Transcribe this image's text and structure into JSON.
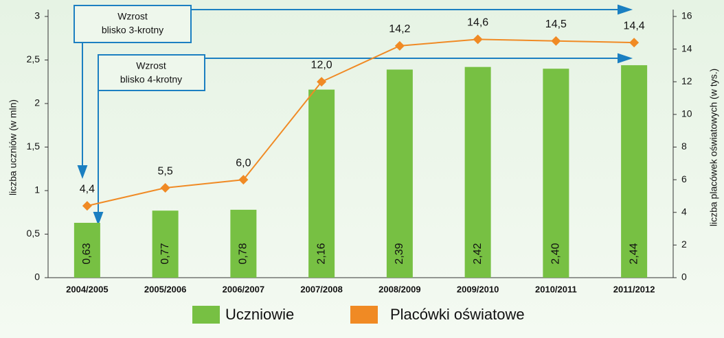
{
  "chart_data": {
    "type": "bar",
    "categories": [
      "2004/2005",
      "2005/2006",
      "2006/2007",
      "2007/2008",
      "2008/2009",
      "2009/2010",
      "2010/2011",
      "2011/2012"
    ],
    "series": [
      {
        "name": "Uczniowie",
        "type": "bar",
        "axis": "y",
        "color": "#77c043",
        "values": [
          0.63,
          0.77,
          0.78,
          2.16,
          2.39,
          2.42,
          2.4,
          2.44
        ],
        "value_labels": [
          "0,63",
          "0,77",
          "0,78",
          "2,16",
          "2,39",
          "2,42",
          "2,40",
          "2,44"
        ]
      },
      {
        "name": "Placówki oświatowe",
        "type": "line",
        "axis": "y2",
        "color": "#f08a24",
        "values": [
          4.4,
          5.5,
          6.0,
          12.0,
          14.2,
          14.6,
          14.5,
          14.4
        ],
        "value_labels": [
          "4,4",
          "5,5",
          "6,0",
          "12,0",
          "14,2",
          "14,6",
          "14,5",
          "14,4"
        ]
      }
    ],
    "ylabel": "liczba uczniów (w mln)",
    "y2label": "liczba placówek oświatowych (w tys.)",
    "ylim": [
      0,
      3
    ],
    "yticks": [
      0,
      {
        "value": 0.5,
        "label": "0,5"
      },
      1,
      {
        "value": 1.5,
        "label": "1,5"
      },
      2,
      {
        "value": 2.5,
        "label": "2,5"
      },
      3
    ],
    "y2lim": [
      0,
      16
    ],
    "y2ticks": [
      0,
      2,
      4,
      6,
      8,
      10,
      12,
      14,
      16
    ],
    "annotations": [
      {
        "text": [
          "Wzrost",
          "blisko 3-krotny"
        ]
      },
      {
        "text": [
          "Wzrost",
          "blisko 4-krotny"
        ]
      }
    ],
    "legend": "bottom"
  }
}
